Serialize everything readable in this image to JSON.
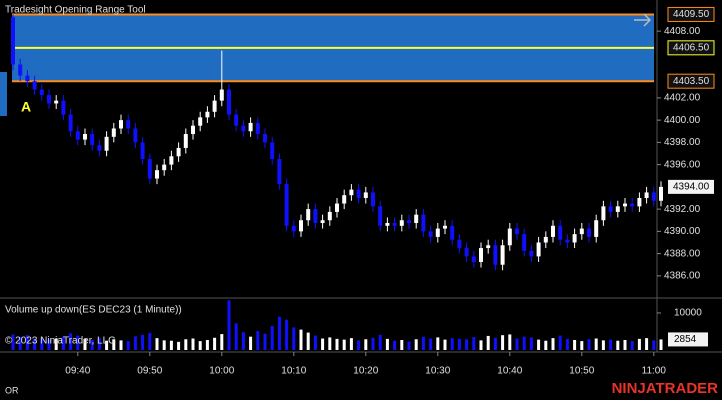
{
  "chart_data": [
    {
      "type": "candlestick",
      "title": "Tradesight Opening Range Tool",
      "categories": [
        null,
        null,
        null,
        null,
        null,
        null,
        null,
        null,
        null,
        "09:40",
        null,
        null,
        null,
        null,
        null,
        null,
        null,
        null,
        null,
        "09:50",
        null,
        null,
        null,
        null,
        null,
        null,
        null,
        null,
        null,
        "10:00",
        null,
        null,
        null,
        null,
        null,
        null,
        null,
        null,
        null,
        "10:10",
        null,
        null,
        null,
        null,
        null,
        null,
        null,
        null,
        null,
        "10:20",
        null,
        null,
        null,
        null,
        null,
        null,
        null,
        null,
        null,
        "10:30",
        null,
        null,
        null,
        null,
        null,
        null,
        null,
        null,
        null,
        "10:40",
        null,
        null,
        null,
        null,
        null,
        null,
        null,
        null,
        null,
        "10:50",
        null,
        null,
        null,
        null,
        null,
        null,
        null,
        null,
        null,
        "11:00",
        null
      ],
      "open": [
        4409.25,
        4405.0,
        4404.0,
        4403.5,
        4402.75,
        4402.25,
        4401.5,
        4401.75,
        4400.5,
        4399.0,
        4398.25,
        4398.75,
        4397.75,
        4397.25,
        4398.5,
        4399.25,
        4400.0,
        4399.25,
        4398.0,
        4396.5,
        4394.75,
        4395.5,
        4396.0,
        4396.75,
        4397.5,
        4398.75,
        4399.5,
        4400.25,
        4400.75,
        4401.75,
        4402.75,
        4400.5,
        4399.5,
        4399.0,
        4399.75,
        4398.75,
        4398.0,
        4396.5,
        4394.25,
        4390.5,
        4390.0,
        4391.0,
        4392.0,
        4390.75,
        4391.0,
        4391.75,
        4392.5,
        4393.25,
        4393.75,
        4393.0,
        4393.5,
        4392.25,
        4390.5,
        4390.75,
        4390.5,
        4391.0,
        4390.75,
        4391.5,
        4390.0,
        4389.5,
        4390.25,
        4390.5,
        4389.25,
        4388.5,
        4387.75,
        4387.25,
        4388.5,
        4388.75,
        4387.0,
        4388.75,
        4390.25,
        4389.75,
        4388.25,
        4387.75,
        4389.0,
        4389.5,
        4390.5,
        4389.25,
        4389.0,
        4389.75,
        4390.25,
        4389.5,
        4391.0,
        4392.25,
        4391.75,
        4392.25,
        4392.5,
        4392.25,
        4393.0,
        4393.5,
        4392.75
      ],
      "high": [
        4409.5,
        4405.5,
        4404.5,
        4404.0,
        4403.25,
        4402.75,
        4402.25,
        4402.25,
        4401.0,
        4399.5,
        4399.25,
        4399.25,
        4398.25,
        4399.0,
        4399.75,
        4400.5,
        4400.5,
        4399.75,
        4398.5,
        4397.0,
        4396.0,
        4396.5,
        4397.25,
        4398.0,
        4399.25,
        4400.0,
        4400.75,
        4401.25,
        4402.25,
        4406.25,
        4403.25,
        4401.0,
        4400.0,
        4400.25,
        4400.25,
        4399.25,
        4398.5,
        4397.0,
        4394.75,
        4391.0,
        4391.5,
        4392.5,
        4392.5,
        4391.5,
        4392.25,
        4393.0,
        4393.75,
        4394.25,
        4394.25,
        4394.0,
        4394.0,
        4392.75,
        4391.25,
        4391.25,
        4391.5,
        4391.5,
        4392.0,
        4392.0,
        4390.5,
        4390.75,
        4391.0,
        4391.0,
        4389.75,
        4389.0,
        4388.25,
        4389.0,
        4389.25,
        4389.25,
        4389.25,
        4390.75,
        4390.75,
        4390.25,
        4388.75,
        4389.5,
        4390.0,
        4391.0,
        4391.0,
        4389.75,
        4390.25,
        4390.75,
        4390.75,
        4391.5,
        4392.75,
        4392.75,
        4392.75,
        4393.0,
        4393.0,
        4393.5,
        4394.0,
        4394.0,
        4394.5
      ],
      "low": [
        4404.5,
        4403.5,
        4403.0,
        4402.25,
        4401.75,
        4401.0,
        4401.0,
        4400.0,
        4398.5,
        4397.75,
        4397.75,
        4397.25,
        4396.75,
        4396.75,
        4398.0,
        4398.75,
        4398.75,
        4397.5,
        4396.0,
        4394.25,
        4394.25,
        4395.0,
        4395.5,
        4396.25,
        4397.0,
        4398.25,
        4399.0,
        4399.75,
        4400.25,
        4401.25,
        4400.0,
        4399.0,
        4398.5,
        4398.5,
        4398.25,
        4397.5,
        4396.0,
        4393.75,
        4390.0,
        4389.5,
        4389.5,
        4390.5,
        4390.25,
        4390.25,
        4390.5,
        4391.25,
        4392.0,
        4392.75,
        4392.5,
        4392.5,
        4391.75,
        4390.0,
        4390.0,
        4390.0,
        4390.0,
        4390.25,
        4390.25,
        4389.5,
        4389.0,
        4389.0,
        4389.75,
        4388.75,
        4388.0,
        4387.25,
        4386.75,
        4386.75,
        4388.0,
        4386.5,
        4386.5,
        4388.25,
        4389.25,
        4387.75,
        4387.25,
        4387.25,
        4388.5,
        4389.0,
        4388.75,
        4388.5,
        4388.5,
        4389.25,
        4389.0,
        4389.0,
        4390.5,
        4391.25,
        4391.25,
        4391.75,
        4391.75,
        4391.75,
        4392.5,
        4392.25,
        4392.25
      ],
      "close": [
        4405.0,
        4404.0,
        4403.5,
        4402.75,
        4402.25,
        4401.5,
        4401.75,
        4400.5,
        4399.0,
        4398.25,
        4398.75,
        4397.75,
        4397.25,
        4398.5,
        4399.25,
        4400.0,
        4399.25,
        4398.0,
        4396.5,
        4394.75,
        4395.5,
        4396.0,
        4396.75,
        4397.5,
        4398.75,
        4399.5,
        4400.25,
        4400.75,
        4401.75,
        4402.75,
        4400.5,
        4399.5,
        4399.0,
        4399.75,
        4398.75,
        4398.0,
        4396.5,
        4394.25,
        4390.5,
        4390.0,
        4391.0,
        4392.0,
        4390.75,
        4391.0,
        4391.75,
        4392.5,
        4393.25,
        4393.75,
        4393.0,
        4393.5,
        4392.25,
        4390.5,
        4390.75,
        4390.5,
        4391.0,
        4390.75,
        4391.5,
        4390.0,
        4389.5,
        4390.25,
        4390.5,
        4389.25,
        4388.5,
        4387.75,
        4387.25,
        4388.5,
        4388.75,
        4387.0,
        4388.75,
        4390.25,
        4389.75,
        4388.25,
        4387.75,
        4389.0,
        4389.5,
        4390.5,
        4389.25,
        4389.0,
        4389.75,
        4390.25,
        4389.5,
        4391.0,
        4392.25,
        4391.75,
        4392.25,
        4392.5,
        4392.25,
        4393.0,
        4393.5,
        4392.75,
        4394.0
      ],
      "up_color": "#ffffff",
      "down_color": "#1010ff",
      "ylim": [
        4384.1,
        4409.9
      ],
      "yticks": [
        {
          "value": 4386,
          "label": "4386.00"
        },
        {
          "value": 4388,
          "label": "4388.00"
        },
        {
          "value": 4390,
          "label": "4390.00"
        },
        {
          "value": 4392,
          "label": "4392.00"
        },
        {
          "value": 4396,
          "label": "4396.00"
        },
        {
          "value": 4398,
          "label": "4398.00"
        },
        {
          "value": 4400,
          "label": "4400.00"
        },
        {
          "value": 4402,
          "label": "4402.00"
        },
        {
          "value": 4408,
          "label": "4408.00"
        }
      ],
      "opening_range": {
        "label": "A",
        "fill": "#1f6cc0",
        "high": {
          "value": 4409.5,
          "label": "4409.50",
          "color": "#ff8c1a"
        },
        "mid": {
          "value": 4406.5,
          "label": "4406.50",
          "color": "#ffff33"
        },
        "low": {
          "value": 4403.5,
          "label": "4403.50",
          "color": "#ff8c1a"
        }
      },
      "last_price": {
        "value": 4394,
        "label": "4394.00"
      }
    },
    {
      "type": "bar",
      "title": "Volume up down(ES DEC23 (1 Minute))",
      "values": [
        4200,
        3500,
        4000,
        3000,
        3200,
        2800,
        3100,
        3600,
        4500,
        3900,
        3000,
        2700,
        3300,
        2500,
        2900,
        2600,
        2400,
        3700,
        4100,
        4600,
        3200,
        2600,
        2500,
        2200,
        2900,
        3100,
        2400,
        2700,
        3300,
        4300,
        13400,
        7200,
        4800,
        3600,
        5100,
        4400,
        6500,
        9000,
        8200,
        6100,
        5500,
        4700,
        3900,
        3100,
        3400,
        3000,
        2800,
        3200,
        2600,
        2900,
        3300,
        4100,
        3000,
        2500,
        2700,
        2300,
        2900,
        3600,
        3100,
        3400,
        2800,
        3200,
        3000,
        2900,
        3500,
        2600,
        3800,
        3300,
        4000,
        4200,
        3100,
        3600,
        3400,
        2800,
        2500,
        3200,
        3900,
        3000,
        2700,
        2400,
        2900,
        3100,
        2600,
        2800,
        2500,
        2700,
        2400,
        3000,
        3200,
        2600,
        2854
      ],
      "up_color": "#ffffff",
      "down_color": "#1010ff",
      "ylim": [
        0,
        13500
      ],
      "yticks": [
        10000
      ],
      "last_value": 2854
    }
  ],
  "copyright": "© 2023 NinjaTrader, LLC",
  "footer": {
    "mode": "OR",
    "brand": "NINJATRADER"
  }
}
